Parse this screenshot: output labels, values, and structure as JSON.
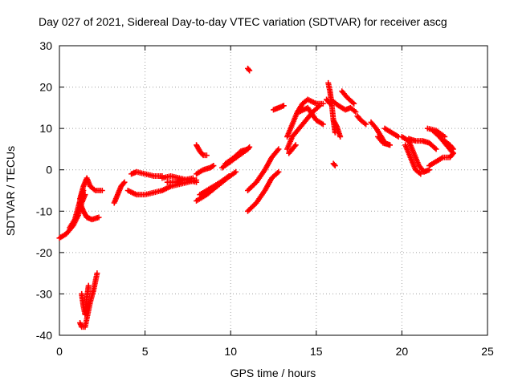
{
  "chart_data": {
    "type": "scatter",
    "title": "Day 027 of 2021, Sidereal Day-to-day VTEC variation (SDTVAR) for receiver ascg",
    "xlabel": "GPS time / hours",
    "ylabel": "SDTVAR / TECUs",
    "xlim": [
      0,
      25
    ],
    "ylim": [
      -40,
      30
    ],
    "xticks": [
      0,
      5,
      10,
      15,
      20,
      25
    ],
    "yticks": [
      -40,
      -30,
      -20,
      -10,
      0,
      10,
      20,
      30
    ],
    "grid": true,
    "marker": "+",
    "series": [
      {
        "name": "SDTVAR",
        "color": "#ff0000",
        "arcs": [
          [
            [
              0.0,
              -16.5
            ],
            [
              0.4,
              -15.5
            ],
            [
              0.8,
              -13.5
            ],
            [
              1.1,
              -11
            ],
            [
              1.3,
              -8
            ],
            [
              1.5,
              -6
            ]
          ],
          [
            [
              0.6,
              -14
            ],
            [
              0.9,
              -12
            ],
            [
              1.1,
              -9
            ],
            [
              1.3,
              -6
            ],
            [
              1.4,
              -5
            ]
          ],
          [
            [
              1.2,
              -8
            ],
            [
              1.4,
              -10
            ],
            [
              1.6,
              -11.5
            ],
            [
              1.9,
              -12
            ],
            [
              2.3,
              -11.5
            ]
          ],
          [
            [
              1.2,
              -7
            ],
            [
              1.4,
              -4
            ],
            [
              1.6,
              -2
            ],
            [
              1.8,
              -4
            ],
            [
              2.1,
              -5
            ],
            [
              2.5,
              -5
            ]
          ],
          [
            [
              1.2,
              -37
            ],
            [
              1.3,
              -38
            ],
            [
              1.5,
              -38
            ],
            [
              1.6,
              -36
            ],
            [
              1.8,
              -32
            ],
            [
              2.0,
              -29
            ],
            [
              2.2,
              -25
            ]
          ],
          [
            [
              1.3,
              -30
            ],
            [
              1.4,
              -33
            ],
            [
              1.5,
              -35
            ],
            [
              1.6,
              -31
            ],
            [
              1.7,
              -28
            ]
          ],
          [
            [
              3.2,
              -8
            ],
            [
              3.4,
              -6
            ],
            [
              3.6,
              -4
            ],
            [
              3.8,
              -3
            ]
          ],
          [
            [
              4.0,
              -5
            ],
            [
              4.5,
              -6
            ],
            [
              5.0,
              -6
            ],
            [
              5.5,
              -5.5
            ],
            [
              6.0,
              -5
            ]
          ],
          [
            [
              4.2,
              -1
            ],
            [
              4.5,
              -0.5
            ],
            [
              5.0,
              -1
            ],
            [
              5.5,
              -1.5
            ],
            [
              6.0,
              -1.5
            ]
          ],
          [
            [
              6.0,
              -5
            ],
            [
              6.5,
              -4
            ],
            [
              7.0,
              -3.5
            ],
            [
              7.5,
              -3
            ],
            [
              8.0,
              -2.5
            ]
          ],
          [
            [
              6.0,
              -2
            ],
            [
              6.5,
              -1.5
            ],
            [
              7.0,
              -2
            ],
            [
              7.5,
              -2.5
            ],
            [
              8.0,
              -3
            ]
          ],
          [
            [
              6.3,
              -3
            ],
            [
              6.8,
              -3
            ],
            [
              7.2,
              -2.5
            ],
            [
              7.8,
              -2
            ]
          ],
          [
            [
              8.0,
              -7.5
            ],
            [
              8.6,
              -6
            ],
            [
              9.2,
              -4
            ],
            [
              9.8,
              -2
            ],
            [
              10.3,
              -0.5
            ]
          ],
          [
            [
              8.2,
              -6
            ],
            [
              8.8,
              -4.5
            ],
            [
              9.4,
              -3
            ],
            [
              9.9,
              -1.5
            ]
          ],
          [
            [
              8.0,
              -1
            ],
            [
              8.4,
              0
            ],
            [
              8.8,
              0.5
            ],
            [
              9.0,
              1
            ]
          ],
          [
            [
              8.0,
              6
            ],
            [
              8.2,
              4.5
            ],
            [
              8.4,
              3.5
            ],
            [
              8.6,
              3.5
            ]
          ],
          [
            [
              9.5,
              0.5
            ],
            [
              10.0,
              2
            ],
            [
              10.5,
              3.5
            ],
            [
              11.0,
              5
            ],
            [
              11.1,
              5.5
            ]
          ],
          [
            [
              9.7,
              1.5
            ],
            [
              10.2,
              3
            ],
            [
              10.6,
              4.5
            ],
            [
              11.0,
              5
            ]
          ],
          [
            [
              11.0,
              24.5
            ],
            [
              11.1,
              24
            ]
          ],
          [
            [
              11.0,
              -10
            ],
            [
              11.5,
              -8
            ],
            [
              12.0,
              -5
            ],
            [
              12.4,
              -2
            ],
            [
              12.8,
              -0.5
            ]
          ],
          [
            [
              11.0,
              -5
            ],
            [
              11.5,
              -3
            ],
            [
              12.0,
              0
            ],
            [
              12.4,
              3
            ],
            [
              12.8,
              5
            ]
          ],
          [
            [
              12.5,
              14.5
            ],
            [
              12.8,
              15
            ],
            [
              13.1,
              15.5
            ]
          ],
          [
            [
              13.3,
              8
            ],
            [
              13.6,
              11
            ],
            [
              13.9,
              14
            ],
            [
              14.2,
              16
            ],
            [
              14.5,
              17
            ],
            [
              15.0,
              16
            ],
            [
              15.4,
              16
            ]
          ],
          [
            [
              13.3,
              5
            ],
            [
              13.6,
              8
            ],
            [
              14.0,
              10
            ],
            [
              14.4,
              12
            ],
            [
              14.8,
              14
            ],
            [
              15.2,
              15.5
            ]
          ],
          [
            [
              13.4,
              4
            ],
            [
              13.8,
              6
            ]
          ],
          [
            [
              14.0,
              14
            ],
            [
              14.5,
              15
            ],
            [
              15.0,
              12
            ],
            [
              15.4,
              11
            ]
          ],
          [
            [
              15.7,
              21
            ],
            [
              15.8,
              19
            ],
            [
              15.9,
              16
            ],
            [
              16.0,
              12
            ],
            [
              16.1,
              9
            ]
          ],
          [
            [
              15.6,
              17
            ],
            [
              15.8,
              16
            ],
            [
              16.0,
              16.5
            ],
            [
              16.3,
              15.5
            ],
            [
              16.7,
              14.5
            ],
            [
              17.0,
              15
            ],
            [
              17.3,
              14
            ]
          ],
          [
            [
              16.0,
              12
            ],
            [
              16.2,
              10.5
            ],
            [
              16.4,
              8
            ]
          ],
          [
            [
              16.5,
              19
            ],
            [
              16.8,
              17.5
            ],
            [
              17.2,
              16
            ]
          ],
          [
            [
              16.0,
              1.5
            ],
            [
              16.1,
              1
            ]
          ],
          [
            [
              17.4,
              13
            ],
            [
              17.6,
              12
            ],
            [
              17.9,
              11
            ]
          ],
          [
            [
              18.2,
              11.5
            ],
            [
              18.5,
              10
            ],
            [
              18.8,
              8
            ],
            [
              19.0,
              6.5
            ],
            [
              19.3,
              6
            ]
          ],
          [
            [
              18.6,
              8
            ],
            [
              18.9,
              6.5
            ],
            [
              19.3,
              6
            ]
          ],
          [
            [
              19.0,
              10
            ],
            [
              19.4,
              9
            ],
            [
              19.8,
              8
            ]
          ],
          [
            [
              20.0,
              8
            ],
            [
              20.4,
              7
            ],
            [
              20.7,
              4
            ],
            [
              21.0,
              1
            ],
            [
              21.3,
              -0.5
            ],
            [
              21.6,
              0
            ]
          ],
          [
            [
              20.2,
              6
            ],
            [
              20.5,
              3
            ],
            [
              20.8,
              0
            ],
            [
              21.1,
              -1
            ]
          ],
          [
            [
              20.4,
              7.5
            ],
            [
              20.8,
              7
            ],
            [
              21.2,
              7
            ],
            [
              21.6,
              6.5
            ],
            [
              22.0,
              5
            ]
          ],
          [
            [
              21.6,
              1
            ],
            [
              22.0,
              2
            ],
            [
              22.4,
              3
            ],
            [
              22.8,
              3
            ],
            [
              23.0,
              4
            ]
          ],
          [
            [
              21.8,
              9.5
            ],
            [
              22.2,
              8
            ],
            [
              22.6,
              6
            ],
            [
              23.0,
              4
            ]
          ],
          [
            [
              21.5,
              10
            ],
            [
              22.0,
              9.5
            ],
            [
              22.5,
              8
            ]
          ],
          [
            [
              22.5,
              7
            ],
            [
              22.8,
              6
            ],
            [
              23.0,
              5
            ]
          ]
        ]
      }
    ]
  }
}
